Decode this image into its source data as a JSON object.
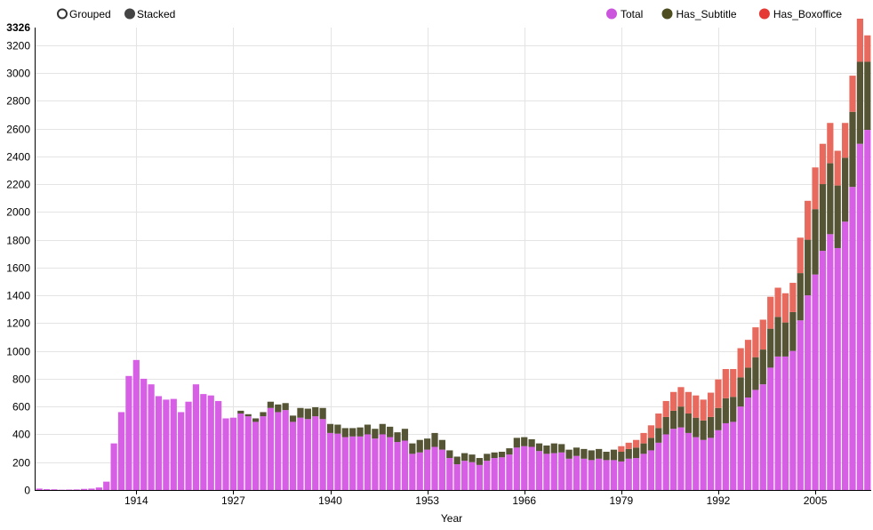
{
  "controls": {
    "grouped_label": "Grouped",
    "stacked_label": "Stacked",
    "selected": "stacked"
  },
  "colors": {
    "Total": "#d75fe6",
    "Has_Subtitle": "#555535",
    "Has_Boxoffice": "#e86a5e",
    "legend_Total": "#cc55dd",
    "legend_Has_Subtitle": "#4d4d1f",
    "legend_Has_Boxoffice": "#e53935"
  },
  "chart_data": {
    "type": "bar",
    "stacked": true,
    "xlabel": "Year",
    "ylabel": "",
    "ylim": [
      0,
      3326
    ],
    "y_max_label": "3326",
    "y_ticks": [
      0,
      200,
      400,
      600,
      800,
      1000,
      1200,
      1400,
      1600,
      1800,
      2000,
      2200,
      2400,
      2600,
      2800,
      3000,
      3200
    ],
    "x_tick_labels": [
      "1914",
      "1927",
      "1940",
      "1953",
      "1966",
      "1979",
      "1992",
      "2005"
    ],
    "x_start": 1901,
    "x_end": 2012,
    "legend": [
      "Total",
      "Has_Subtitle",
      "Has_Boxoffice"
    ],
    "legend_position": "top-right",
    "grid": true,
    "series": [
      {
        "name": "Total",
        "values": [
          10,
          6,
          5,
          2,
          3,
          4,
          8,
          10,
          18,
          60,
          335,
          560,
          820,
          935,
          800,
          760,
          675,
          650,
          655,
          560,
          635,
          760,
          690,
          680,
          640,
          515,
          520,
          550,
          530,
          490,
          530,
          590,
          560,
          575,
          490,
          520,
          510,
          530,
          510,
          410,
          405,
          380,
          385,
          385,
          400,
          370,
          400,
          380,
          345,
          355,
          260,
          270,
          290,
          310,
          290,
          230,
          185,
          210,
          200,
          180,
          210,
          230,
          235,
          255,
          305,
          315,
          310,
          280,
          260,
          265,
          270,
          225,
          245,
          225,
          215,
          225,
          215,
          215,
          205,
          225,
          230,
          260,
          285,
          340,
          400,
          440,
          450,
          410,
          380,
          360,
          375,
          430,
          480,
          490,
          600,
          665,
          720,
          760,
          880,
          960,
          960,
          1000,
          1220,
          1400,
          1550,
          1720,
          1840,
          1740,
          1930,
          2180,
          2490,
          2590
        ]
      },
      {
        "name": "Has_Subtitle",
        "values": [
          0,
          0,
          0,
          0,
          0,
          0,
          0,
          0,
          0,
          0,
          0,
          0,
          0,
          0,
          0,
          0,
          0,
          0,
          0,
          0,
          0,
          0,
          0,
          0,
          0,
          0,
          0,
          20,
          15,
          25,
          30,
          45,
          55,
          50,
          45,
          70,
          75,
          65,
          80,
          65,
          65,
          65,
          60,
          65,
          70,
          70,
          75,
          75,
          70,
          85,
          75,
          90,
          80,
          100,
          70,
          55,
          55,
          55,
          55,
          50,
          50,
          40,
          40,
          45,
          70,
          65,
          55,
          55,
          60,
          70,
          60,
          65,
          60,
          70,
          70,
          70,
          60,
          75,
          70,
          70,
          75,
          75,
          90,
          105,
          125,
          130,
          150,
          140,
          140,
          140,
          150,
          160,
          180,
          180,
          210,
          215,
          235,
          250,
          280,
          285,
          245,
          280,
          340,
          400,
          470,
          480,
          510,
          450,
          460,
          540,
          590,
          490
        ]
      },
      {
        "name": "Has_Boxoffice",
        "values": [
          0,
          0,
          0,
          0,
          0,
          0,
          0,
          0,
          0,
          0,
          0,
          0,
          0,
          0,
          0,
          0,
          0,
          0,
          0,
          0,
          0,
          0,
          0,
          0,
          0,
          0,
          0,
          0,
          0,
          0,
          0,
          0,
          0,
          0,
          0,
          0,
          0,
          0,
          0,
          0,
          0,
          0,
          0,
          0,
          0,
          0,
          0,
          0,
          0,
          0,
          0,
          0,
          0,
          0,
          0,
          0,
          0,
          0,
          0,
          0,
          0,
          0,
          0,
          0,
          0,
          0,
          0,
          0,
          0,
          0,
          0,
          0,
          0,
          0,
          0,
          0,
          0,
          0,
          40,
          45,
          55,
          75,
          90,
          105,
          115,
          135,
          140,
          155,
          160,
          150,
          175,
          205,
          210,
          200,
          210,
          200,
          215,
          215,
          230,
          210,
          210,
          210,
          255,
          280,
          300,
          290,
          290,
          250,
          250,
          260,
          310,
          190
        ]
      }
    ]
  }
}
